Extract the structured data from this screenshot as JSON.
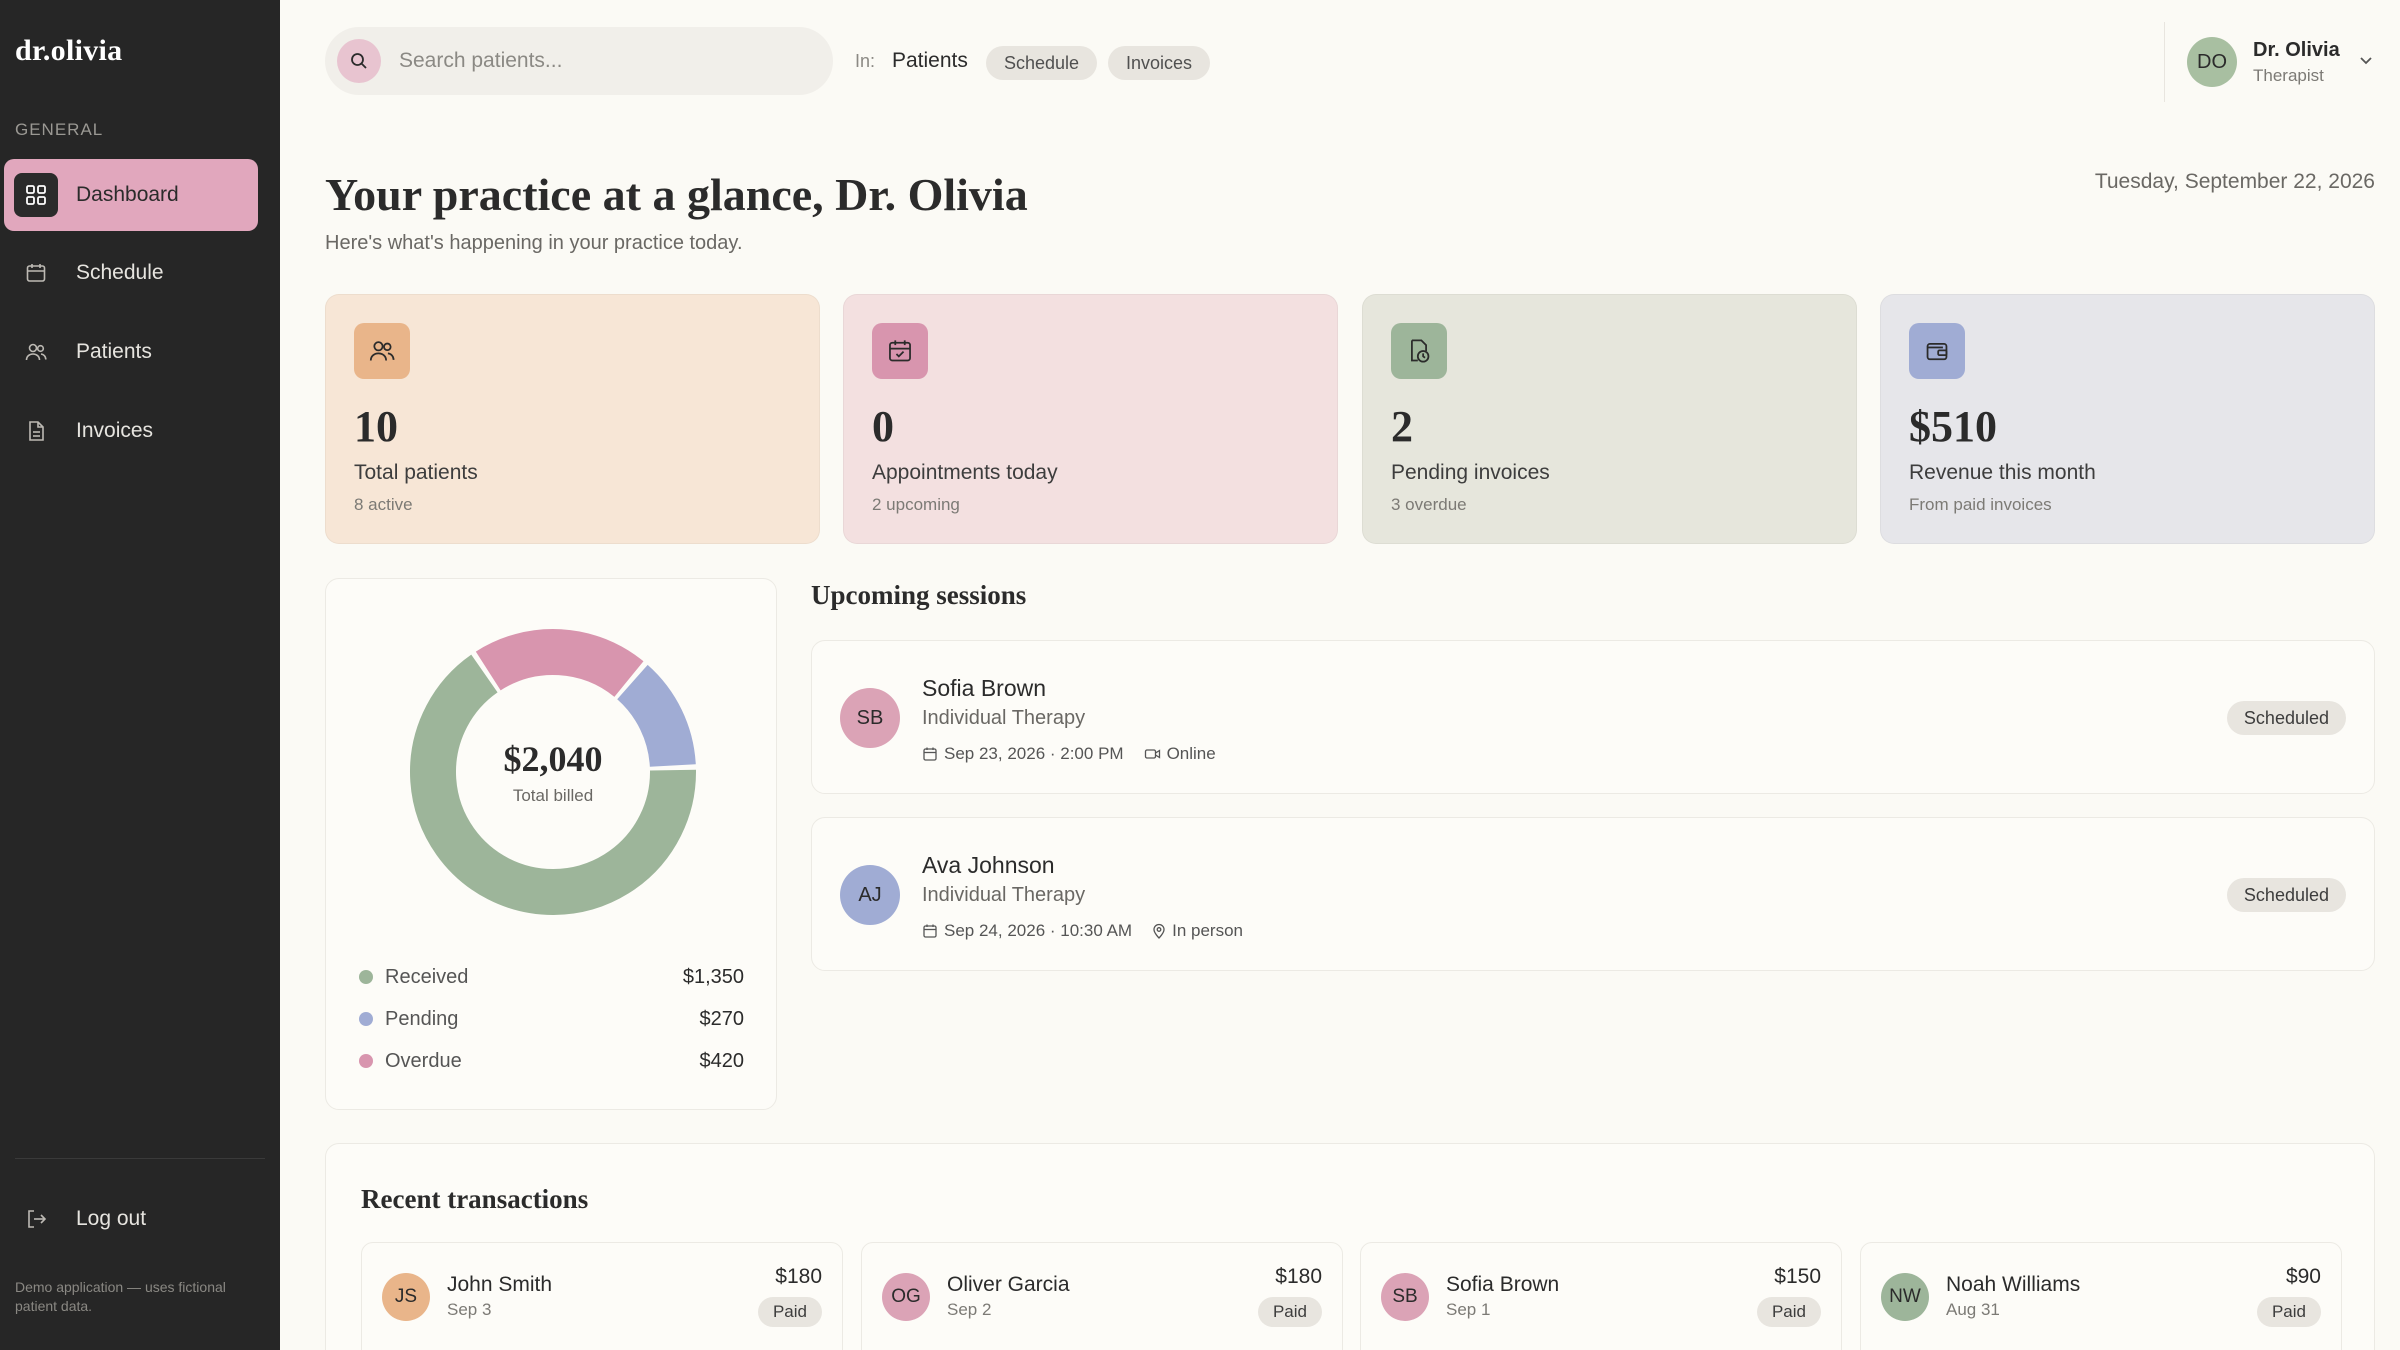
{
  "sidebar": {
    "brand": "dr.olivia",
    "section": "GENERAL",
    "items": [
      {
        "label": "Dashboard",
        "icon": "grid-icon",
        "active": true
      },
      {
        "label": "Schedule",
        "icon": "calendar-icon"
      },
      {
        "label": "Patients",
        "icon": "users-icon"
      },
      {
        "label": "Invoices",
        "icon": "document-icon"
      }
    ],
    "logout": "Log out",
    "footnote": "Demo application — uses fictional patient data."
  },
  "topbar": {
    "search_placeholder": "Search patients...",
    "scope_label": "In:",
    "scopes": [
      "Patients",
      "Schedule",
      "Invoices"
    ],
    "user": {
      "initials": "DO",
      "name": "Dr. Olivia",
      "role": "Therapist"
    }
  },
  "header": {
    "title": "Your practice at a glance, Dr. Olivia",
    "subtitle": "Here's what's happening in your practice today.",
    "date": "Tuesday, September 22, 2026"
  },
  "stats": [
    {
      "value": "10",
      "label": "Total patients",
      "sub": "8 active",
      "icon": "users-icon",
      "bg": "#f7e6d6",
      "icon_bg": "#e9b58a"
    },
    {
      "value": "0",
      "label": "Appointments today",
      "sub": "2 upcoming",
      "icon": "calendar-icon",
      "bg": "#f3e0e0",
      "icon_bg": "#d895ae"
    },
    {
      "value": "2",
      "label": "Pending invoices",
      "sub": "3 overdue",
      "icon": "invoice-clock-icon",
      "bg": "#e6e6dc",
      "icon_bg": "#9db59a"
    },
    {
      "value": "$510",
      "label": "Revenue this month",
      "sub": "From paid invoices",
      "icon": "wallet-icon",
      "bg": "#e6e6ea",
      "icon_bg": "#a0acd4"
    }
  ],
  "billing": {
    "total": "$2,040",
    "total_label": "Total billed",
    "segments": [
      {
        "name": "Received",
        "value": 1350,
        "display": "$1,350",
        "color": "#9db59a"
      },
      {
        "name": "Pending",
        "value": 270,
        "display": "$270",
        "color": "#a0acd4"
      },
      {
        "name": "Overdue",
        "value": 420,
        "display": "$420",
        "color": "#d895ae"
      }
    ]
  },
  "sessions": {
    "title": "Upcoming sessions",
    "items": [
      {
        "initials": "SB",
        "name": "Sofia Brown",
        "type": "Individual Therapy",
        "when": "Sep 23, 2026 · 2:00 PM",
        "mode": "Online",
        "mode_icon": "video-icon",
        "status": "Scheduled",
        "avatar_color": "#dba3b6"
      },
      {
        "initials": "AJ",
        "name": "Ava Johnson",
        "type": "Individual Therapy",
        "when": "Sep 24, 2026 · 10:30 AM",
        "mode": "In person",
        "mode_icon": "location-pin-icon",
        "status": "Scheduled",
        "avatar_color": "#a0acd4"
      }
    ]
  },
  "transactions": {
    "title": "Recent transactions",
    "items": [
      {
        "initials": "JS",
        "name": "John Smith",
        "date": "Sep 3",
        "amount": "$180",
        "status": "Paid",
        "avatar_color": "#e9b58a"
      },
      {
        "initials": "OG",
        "name": "Oliver Garcia",
        "date": "Sep 2",
        "amount": "$180",
        "status": "Paid",
        "avatar_color": "#dba3b6"
      },
      {
        "initials": "SB",
        "name": "Sofia Brown",
        "date": "Sep 1",
        "amount": "$150",
        "status": "Paid",
        "avatar_color": "#dba3b6"
      },
      {
        "initials": "NW",
        "name": "Noah Williams",
        "date": "Aug 31",
        "amount": "$90",
        "status": "Paid",
        "avatar_color": "#9db59a"
      }
    ]
  }
}
